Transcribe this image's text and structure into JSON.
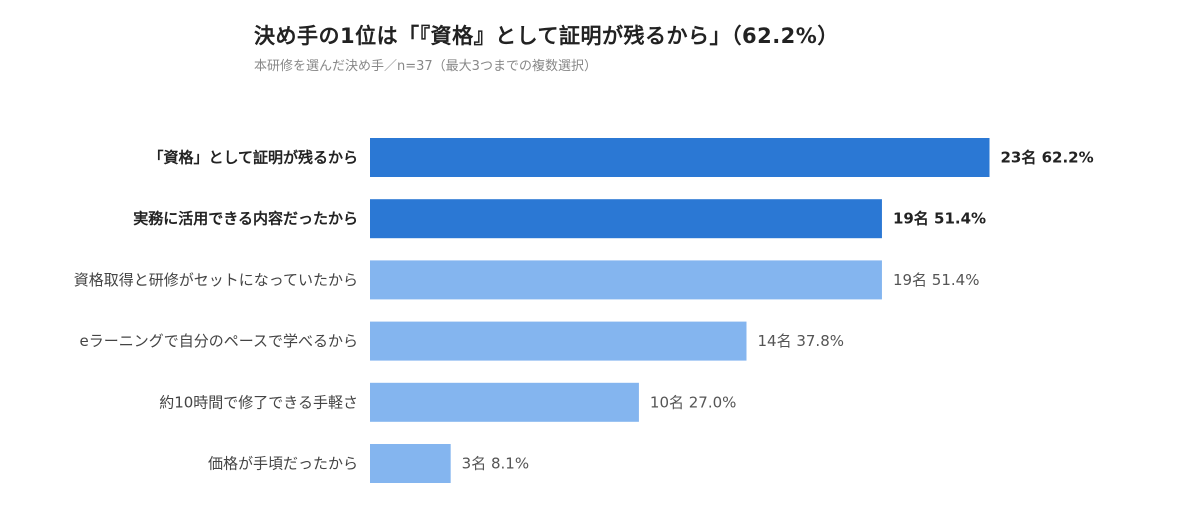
{
  "title": "決め手の1位は「『資格』として証明が残るから」（62.2%）",
  "subtitle": "本研修を選んだ決め手／n=37（最大3つまでの複数選択）",
  "colors": {
    "highlight": "#2b78d4",
    "normal": "#84b5ef"
  },
  "chart_data": {
    "type": "bar",
    "orientation": "horizontal",
    "categories": [
      "「資格」として証明が残るから",
      "実務に活用できる内容だったから",
      "資格取得と研修がセットになっていたから",
      "eラーニングで自分のペースで学べるから",
      "約10時間で修了できる手軽さ",
      "価格が手頃だったから"
    ],
    "values": [
      62.2,
      51.4,
      51.4,
      37.8,
      27.0,
      8.1
    ],
    "counts": [
      23,
      19,
      19,
      14,
      10,
      3
    ],
    "value_labels": [
      "23名 62.2%",
      "19名 51.4%",
      "19名 51.4%",
      "14名 37.8%",
      "10名 27.0%",
      "3名 8.1%"
    ],
    "highlighted": [
      true,
      true,
      false,
      false,
      false,
      false
    ],
    "xlim": [
      0,
      100
    ],
    "grid": false,
    "legend": "none"
  }
}
